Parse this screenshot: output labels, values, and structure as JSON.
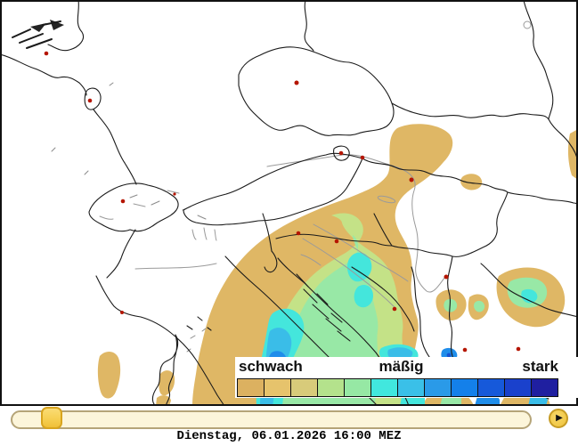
{
  "legend": {
    "label_weak": "schwach",
    "label_moderate": "mäßig",
    "label_strong": "stark",
    "swatches": [
      "#dcb160",
      "#e6c36c",
      "#d8cb7a",
      "#b4e28c",
      "#96e8a4",
      "#41e7de",
      "#3ac0e8",
      "#2a9ae8",
      "#1480ea",
      "#1659da",
      "#1a41cc",
      "#1f1fa0"
    ]
  },
  "timeline": {
    "date_label": "Dienstag, 06.01.2026 16:00 MEZ",
    "slider_percent": 7.5,
    "icons": {
      "play": "▶"
    }
  },
  "map": {
    "colors": {
      "line": "#1a1a1a",
      "water": "#9a9a9a",
      "city_dot": "#b51500",
      "precip_tan": "#dfb765",
      "precip_yellow_green": "#c4e287",
      "precip_green": "#98e8a6",
      "precip_cyan": "#44e6dc",
      "precip_light_blue": "#3abde8",
      "precip_blue": "#1f8dea",
      "precip_deep_blue": "#1552d2",
      "precip_navy": "#1e1ea0"
    }
  }
}
